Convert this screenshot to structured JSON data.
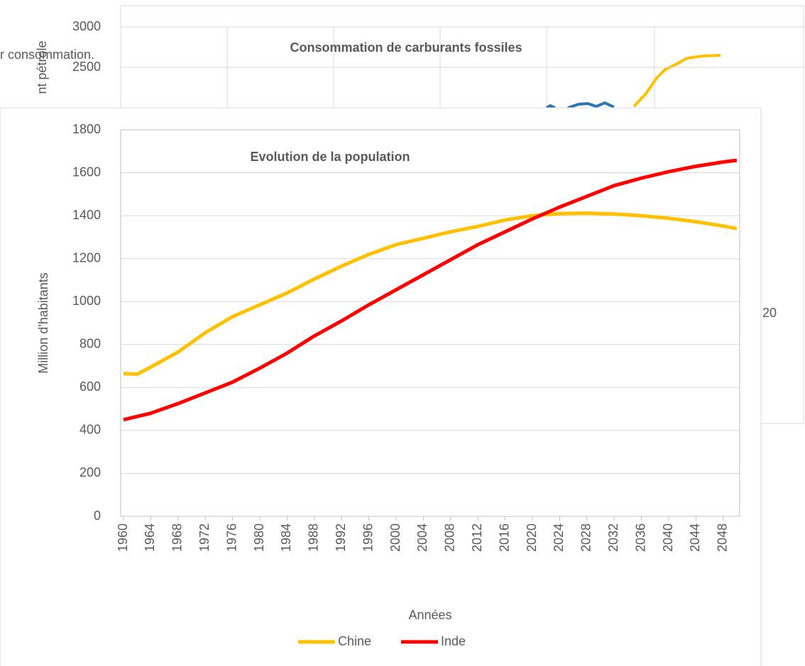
{
  "chart_data": [
    {
      "type": "line",
      "title": "Consommation de carburants fossiles",
      "ylabel": "nt pétrole",
      "ylim": [
        2000,
        3000
      ],
      "yticks": [
        2500,
        3000
      ],
      "texts": [
        "r consommation.",
        "20"
      ]
    },
    {
      "type": "line",
      "title": "Evolution de la population",
      "xlabel": "Années",
      "ylabel": "Million d'habitants",
      "x": [
        1960,
        1962,
        1964,
        1968,
        1972,
        1976,
        1980,
        1984,
        1988,
        1992,
        1996,
        2000,
        2004,
        2008,
        2012,
        2016,
        2020,
        2024,
        2028,
        2032,
        2036,
        2040,
        2044,
        2048,
        2050
      ],
      "series": [
        {
          "name": "Chine",
          "color": "#ffc000",
          "values": [
            665,
            662,
            695,
            765,
            855,
            930,
            985,
            1040,
            1105,
            1165,
            1220,
            1265,
            1295,
            1325,
            1350,
            1380,
            1400,
            1410,
            1412,
            1408,
            1400,
            1388,
            1372,
            1352,
            1340
          ]
        },
        {
          "name": "Inde",
          "color": "#ff0000",
          "values": [
            450,
            465,
            480,
            525,
            575,
            625,
            690,
            760,
            840,
            910,
            985,
            1055,
            1125,
            1195,
            1265,
            1325,
            1385,
            1440,
            1490,
            1540,
            1575,
            1605,
            1630,
            1650,
            1658
          ]
        }
      ],
      "xlim": [
        1960,
        2050
      ],
      "xticks": [
        1960,
        1964,
        1968,
        1972,
        1976,
        1980,
        1984,
        1988,
        1992,
        1996,
        2000,
        2004,
        2008,
        2012,
        2016,
        2020,
        2024,
        2028,
        2032,
        2036,
        2040,
        2044,
        2048
      ],
      "ylim": [
        0,
        1800
      ],
      "yticks": [
        0,
        200,
        400,
        600,
        800,
        1000,
        1200,
        1400,
        1600,
        1800
      ],
      "grid": true,
      "legend": "bottom"
    }
  ]
}
